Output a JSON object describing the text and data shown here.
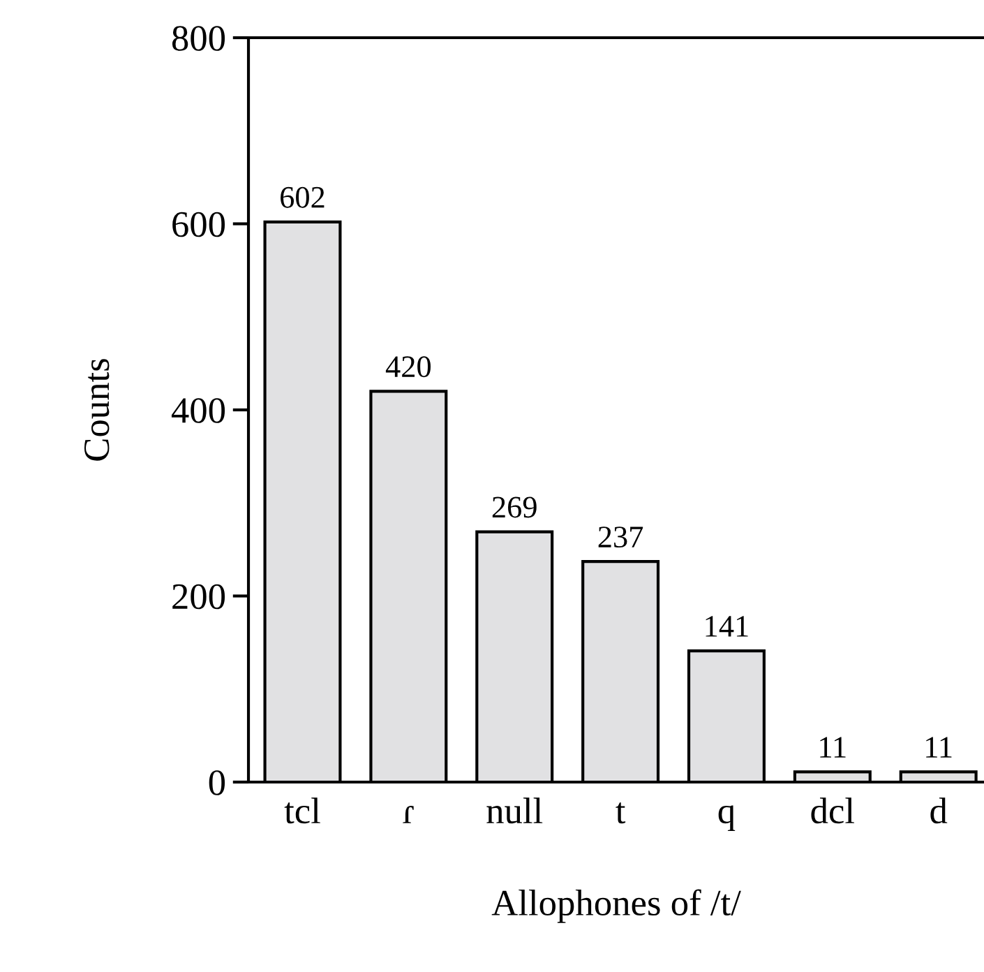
{
  "chart_data": {
    "type": "bar",
    "xlabel": "Allophones of /t/",
    "ylabel": "Counts",
    "categories": [
      "tcl",
      "ɾ",
      "null",
      "t",
      "q",
      "dcl",
      "d"
    ],
    "values": [
      602,
      420,
      269,
      237,
      141,
      11,
      11
    ],
    "color": "#e1e1e3",
    "ylim": [
      0,
      800
    ],
    "yticks": [
      0,
      200,
      400,
      600,
      800
    ],
    "data_labels": true,
    "grid": false,
    "legend": false
  }
}
